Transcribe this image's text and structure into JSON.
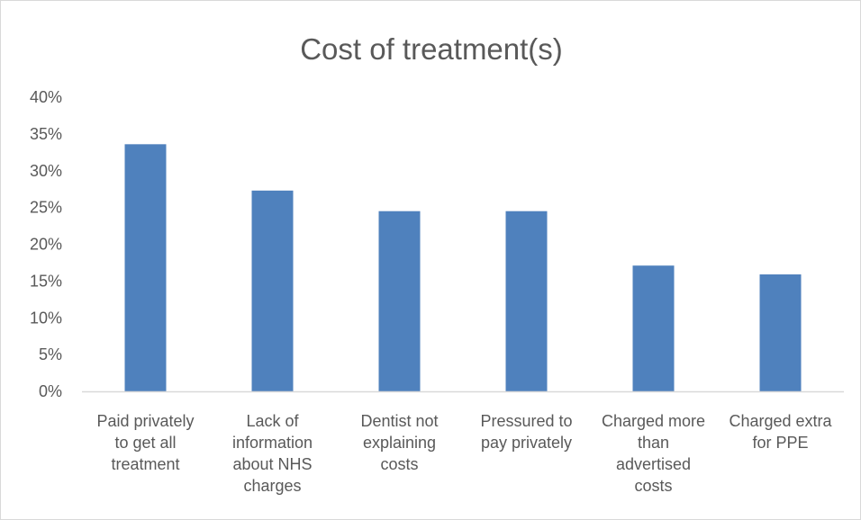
{
  "chart_data": {
    "type": "bar",
    "title": "Cost of treatment(s)",
    "xlabel": "",
    "ylabel": "",
    "categories": [
      "Paid privately to get all treatment",
      "Lack of information about NHS charges",
      "Dentist not explaining costs",
      "Pressured to pay privately",
      "Charged more than advertised costs",
      "Charged extra for PPE"
    ],
    "category_lines": [
      [
        "Paid privately",
        "to get all",
        "treatment"
      ],
      [
        "Lack of",
        "information",
        "about NHS",
        "charges"
      ],
      [
        "Dentist not",
        "explaining",
        "costs"
      ],
      [
        "Pressured to",
        "pay privately"
      ],
      [
        "Charged more",
        "than",
        "advertised",
        "costs"
      ],
      [
        "Charged extra",
        "for PPE"
      ]
    ],
    "values": [
      0.336,
      0.273,
      0.245,
      0.245,
      0.171,
      0.159
    ],
    "ylim": [
      0,
      0.4
    ],
    "yticks": [
      0,
      0.05,
      0.1,
      0.15,
      0.2,
      0.25,
      0.3,
      0.35,
      0.4
    ],
    "ytick_labels": [
      "0%",
      "5%",
      "10%",
      "15%",
      "20%",
      "25%",
      "30%",
      "35%",
      "40%"
    ],
    "grid": false,
    "legend": "none",
    "colors": {
      "bar": "#4f81bd",
      "axis": "#d9d9d9",
      "text": "#595959"
    }
  }
}
